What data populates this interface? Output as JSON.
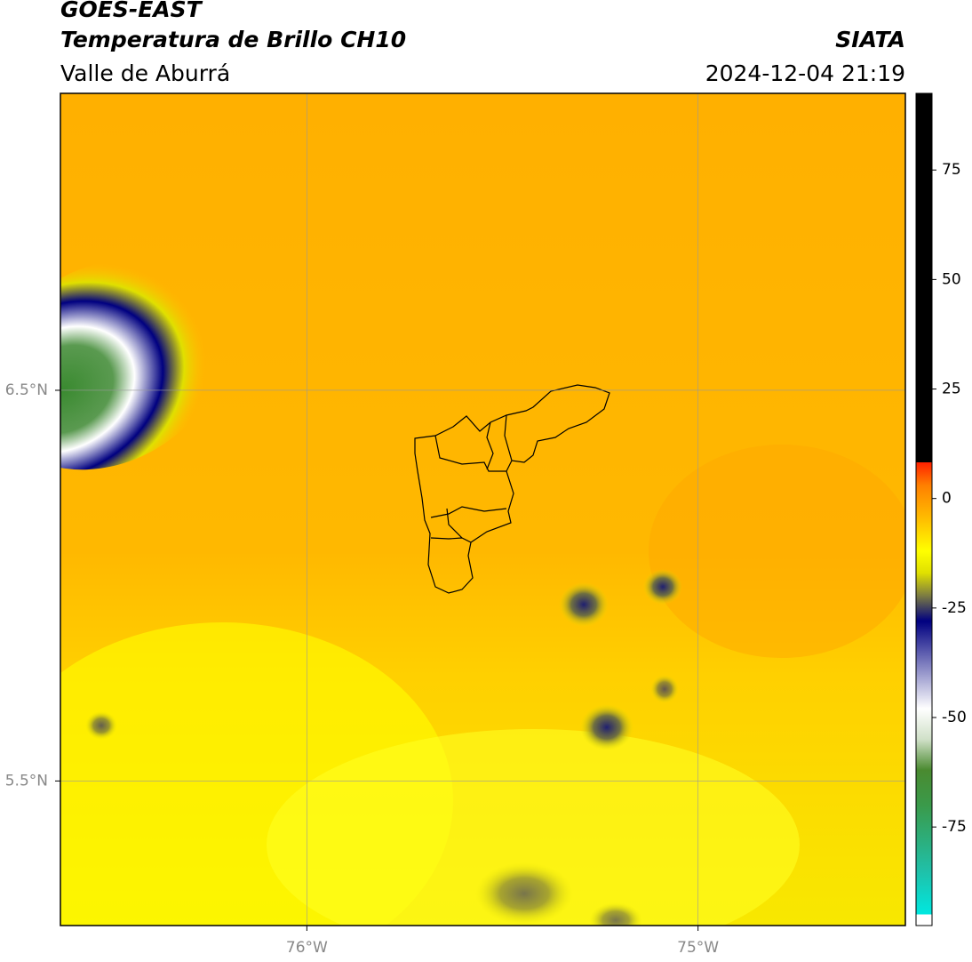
{
  "header": {
    "title": "GOES-EAST",
    "subtitle": "Temperatura de Brillo CH10",
    "region": "Valle de Aburrá",
    "source": "SIATA",
    "timestamp": "2024-12-04 21:19"
  },
  "map": {
    "xlim": [
      -76.63,
      -74.47
    ],
    "ylim": [
      5.13,
      7.26
    ],
    "xticks": [
      {
        "value": -76,
        "label": "76°W"
      },
      {
        "value": -75,
        "label": "75°W"
      }
    ],
    "yticks": [
      {
        "value": 6.5,
        "label": "6.5°N"
      },
      {
        "value": 5.5,
        "label": "5.5°N"
      }
    ],
    "grid": true
  },
  "colorbar": {
    "lim": [
      -97.5,
      92.5
    ],
    "ticks": [
      75,
      50,
      25,
      0,
      -25,
      -50,
      -75
    ],
    "stops": [
      {
        "value": -97.5,
        "color": "#ffffff"
      },
      {
        "value": -95,
        "color": "#ffffff"
      },
      {
        "value": -95,
        "color": "#00e8e0"
      },
      {
        "value": -85,
        "color": "#20c0a8"
      },
      {
        "value": -70,
        "color": "#3a9a4a"
      },
      {
        "value": -62,
        "color": "#4a8a30"
      },
      {
        "value": -55,
        "color": "#d0e0c8"
      },
      {
        "value": -48,
        "color": "#ffffff"
      },
      {
        "value": -38,
        "color": "#8080c0"
      },
      {
        "value": -28,
        "color": "#000080"
      },
      {
        "value": -22,
        "color": "#808040"
      },
      {
        "value": -17,
        "color": "#e0e000"
      },
      {
        "value": -12,
        "color": "#ffff00"
      },
      {
        "value": -5,
        "color": "#ffc000"
      },
      {
        "value": 3,
        "color": "#ff8000"
      },
      {
        "value": 8.3,
        "color": "#ff2000"
      },
      {
        "value": 8.3,
        "color": "#000000"
      },
      {
        "value": 92.5,
        "color": "#000000"
      }
    ]
  }
}
